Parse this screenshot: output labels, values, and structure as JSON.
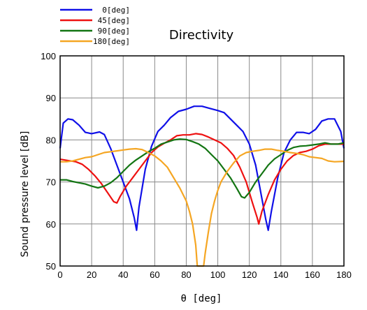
{
  "chart_data": {
    "type": "line",
    "title": "Directivity",
    "xlabel": "θ [deg]",
    "ylabel": "Sound pressure level  [dB]",
    "xlim": [
      0,
      180
    ],
    "ylim": [
      50,
      100
    ],
    "xticks": [
      0,
      20,
      40,
      60,
      80,
      100,
      120,
      140,
      160,
      180
    ],
    "yticks": [
      50,
      60,
      70,
      80,
      90,
      100
    ],
    "grid": true,
    "legend_position": "top-left",
    "series": [
      {
        "name": "0[deg]",
        "color": "#1010e8",
        "points": [
          [
            0,
            78
          ],
          [
            2,
            84
          ],
          [
            5,
            85
          ],
          [
            8,
            84.8
          ],
          [
            12,
            83.5
          ],
          [
            16,
            81.8
          ],
          [
            20,
            81.5
          ],
          [
            25,
            81.9
          ],
          [
            28,
            81.3
          ],
          [
            32,
            78
          ],
          [
            36,
            74
          ],
          [
            40,
            70
          ],
          [
            44,
            66
          ],
          [
            47,
            61.5
          ],
          [
            48.5,
            58.5
          ],
          [
            50,
            64
          ],
          [
            54,
            73
          ],
          [
            58,
            78.5
          ],
          [
            62,
            82
          ],
          [
            66,
            83.5
          ],
          [
            70,
            85.3
          ],
          [
            75,
            86.8
          ],
          [
            80,
            87.3
          ],
          [
            85,
            88
          ],
          [
            90,
            88
          ],
          [
            95,
            87.5
          ],
          [
            100,
            87
          ],
          [
            104,
            86.5
          ],
          [
            108,
            85
          ],
          [
            112,
            83.5
          ],
          [
            116,
            82
          ],
          [
            120,
            79
          ],
          [
            124,
            74
          ],
          [
            128,
            66
          ],
          [
            130.5,
            61
          ],
          [
            132,
            58.5
          ],
          [
            134,
            63
          ],
          [
            138,
            71
          ],
          [
            142,
            77
          ],
          [
            146,
            80
          ],
          [
            150,
            81.8
          ],
          [
            154,
            81.8
          ],
          [
            158,
            81.5
          ],
          [
            162,
            82.5
          ],
          [
            166,
            84.5
          ],
          [
            170,
            85
          ],
          [
            174,
            85
          ],
          [
            178,
            82
          ],
          [
            180,
            78
          ]
        ]
      },
      {
        "name": "45[deg]",
        "color": "#ee1111",
        "points": [
          [
            0,
            75.4
          ],
          [
            5,
            75.1
          ],
          [
            10,
            74.8
          ],
          [
            14,
            74.2
          ],
          [
            18,
            73
          ],
          [
            22,
            71.5
          ],
          [
            26,
            69.7
          ],
          [
            30,
            67.5
          ],
          [
            34,
            65.3
          ],
          [
            36,
            65
          ],
          [
            38,
            66.5
          ],
          [
            42,
            69
          ],
          [
            46,
            71
          ],
          [
            50,
            73
          ],
          [
            54,
            75
          ],
          [
            58,
            77
          ],
          [
            62,
            78.3
          ],
          [
            66,
            79.2
          ],
          [
            70,
            80
          ],
          [
            74,
            81
          ],
          [
            78,
            81.2
          ],
          [
            82,
            81.2
          ],
          [
            86,
            81.5
          ],
          [
            90,
            81.3
          ],
          [
            94,
            80.7
          ],
          [
            98,
            80
          ],
          [
            102,
            79.3
          ],
          [
            106,
            78
          ],
          [
            110,
            76.3
          ],
          [
            114,
            73.5
          ],
          [
            118,
            70
          ],
          [
            122,
            65
          ],
          [
            125,
            61.5
          ],
          [
            126,
            60
          ],
          [
            128,
            63
          ],
          [
            132,
            67
          ],
          [
            136,
            70.5
          ],
          [
            140,
            73
          ],
          [
            144,
            75
          ],
          [
            148,
            76.3
          ],
          [
            152,
            77
          ],
          [
            156,
            77.3
          ],
          [
            160,
            77.8
          ],
          [
            164,
            78.6
          ],
          [
            168,
            79
          ],
          [
            172,
            79
          ],
          [
            176,
            79
          ],
          [
            180,
            79
          ]
        ]
      },
      {
        "name": "90[deg]",
        "color": "#137513",
        "points": [
          [
            0,
            70.5
          ],
          [
            4,
            70.5
          ],
          [
            8,
            70.1
          ],
          [
            12,
            69.8
          ],
          [
            16,
            69.5
          ],
          [
            20,
            69
          ],
          [
            24,
            68.6
          ],
          [
            28,
            69
          ],
          [
            32,
            69.8
          ],
          [
            36,
            71
          ],
          [
            40,
            72.5
          ],
          [
            44,
            74
          ],
          [
            48,
            75.2
          ],
          [
            52,
            76.2
          ],
          [
            56,
            77.2
          ],
          [
            60,
            78
          ],
          [
            64,
            79
          ],
          [
            68,
            79.5
          ],
          [
            72,
            80
          ],
          [
            76,
            80.2
          ],
          [
            80,
            80.1
          ],
          [
            84,
            79.6
          ],
          [
            88,
            79
          ],
          [
            92,
            78
          ],
          [
            96,
            76.5
          ],
          [
            100,
            75
          ],
          [
            104,
            73
          ],
          [
            108,
            71
          ],
          [
            112,
            68.5
          ],
          [
            115,
            66.5
          ],
          [
            117,
            66.2
          ],
          [
            120,
            67.5
          ],
          [
            124,
            70
          ],
          [
            128,
            72
          ],
          [
            132,
            74
          ],
          [
            136,
            75.5
          ],
          [
            140,
            76.5
          ],
          [
            144,
            77.5
          ],
          [
            148,
            78.2
          ],
          [
            152,
            78.5
          ],
          [
            156,
            78.6
          ],
          [
            160,
            78.8
          ],
          [
            164,
            79
          ],
          [
            168,
            79.3
          ],
          [
            172,
            79
          ],
          [
            176,
            79
          ],
          [
            180,
            79.3
          ]
        ]
      },
      {
        "name": "180[deg]",
        "color": "#f5a623",
        "points": [
          [
            0,
            74.8
          ],
          [
            4,
            74.8
          ],
          [
            8,
            75
          ],
          [
            12,
            75.4
          ],
          [
            16,
            75.8
          ],
          [
            20,
            76
          ],
          [
            24,
            76.5
          ],
          [
            28,
            77
          ],
          [
            32,
            77.2
          ],
          [
            36,
            77.4
          ],
          [
            40,
            77.6
          ],
          [
            44,
            77.8
          ],
          [
            48,
            77.9
          ],
          [
            52,
            77.7
          ],
          [
            56,
            77
          ],
          [
            60,
            76.2
          ],
          [
            64,
            75
          ],
          [
            68,
            73.5
          ],
          [
            72,
            71
          ],
          [
            76,
            68.5
          ],
          [
            80,
            65.5
          ],
          [
            82,
            63
          ],
          [
            84,
            60
          ],
          [
            86,
            55
          ],
          [
            87,
            50
          ],
          [
            91,
            50
          ],
          [
            92,
            53
          ],
          [
            94,
            58
          ],
          [
            96,
            62.5
          ],
          [
            98,
            65.5
          ],
          [
            100,
            68
          ],
          [
            102,
            70
          ],
          [
            106,
            72.5
          ],
          [
            110,
            74.5
          ],
          [
            114,
            76.2
          ],
          [
            118,
            77
          ],
          [
            122,
            77.3
          ],
          [
            126,
            77.5
          ],
          [
            130,
            77.8
          ],
          [
            134,
            77.8
          ],
          [
            138,
            77.5
          ],
          [
            142,
            77.3
          ],
          [
            146,
            77
          ],
          [
            150,
            76.8
          ],
          [
            154,
            76.5
          ],
          [
            158,
            76
          ],
          [
            162,
            75.8
          ],
          [
            166,
            75.6
          ],
          [
            170,
            75
          ],
          [
            174,
            74.8
          ],
          [
            180,
            74.9
          ]
        ]
      }
    ]
  }
}
